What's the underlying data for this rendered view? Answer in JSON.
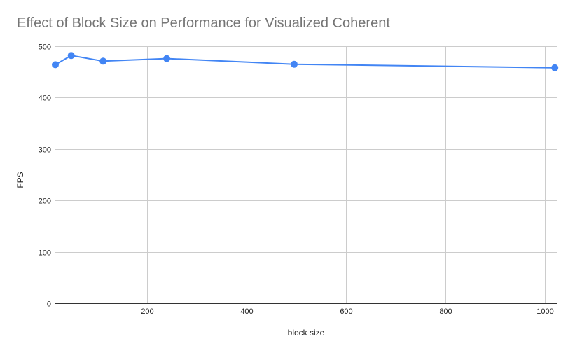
{
  "chart_data": {
    "type": "line",
    "title": "Effect of Block Size on Performance for Visualized Coherent",
    "xlabel": "block size",
    "ylabel": "FPS",
    "xlim": [
      16,
      1024
    ],
    "ylim": [
      0,
      500
    ],
    "x_ticks": [
      200,
      400,
      600,
      800,
      1000
    ],
    "y_ticks": [
      0,
      100,
      200,
      300,
      400,
      500
    ],
    "grid": true,
    "legend": "none",
    "series": [
      {
        "color": "#4285f4",
        "points": [
          {
            "x": 16,
            "y": 464
          },
          {
            "x": 48,
            "y": 482
          },
          {
            "x": 112,
            "y": 471
          },
          {
            "x": 240,
            "y": 476
          },
          {
            "x": 496,
            "y": 465
          },
          {
            "x": 1020,
            "y": 458
          }
        ]
      }
    ]
  }
}
